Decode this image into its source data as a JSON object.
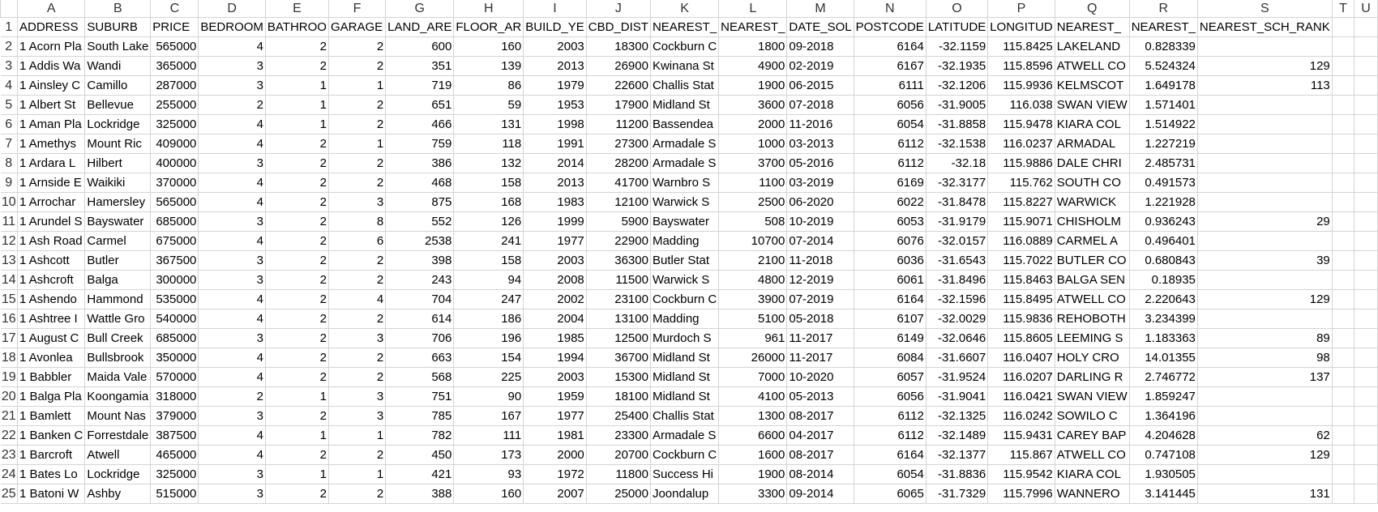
{
  "sheet": {
    "column_letters": [
      "A",
      "B",
      "C",
      "D",
      "E",
      "F",
      "G",
      "H",
      "I",
      "J",
      "K",
      "L",
      "M",
      "N",
      "O",
      "P",
      "Q",
      "R",
      "S",
      "T",
      "U"
    ],
    "rows": [
      {
        "num": "1",
        "cells": [
          "ADDRESS",
          "SUBURB",
          "PRICE",
          "BEDROOM",
          "BATHROO",
          "GARAGE",
          "LAND_ARE",
          "FLOOR_AR",
          "BUILD_YE",
          "CBD_DIST",
          "NEAREST_",
          "NEAREST_",
          "DATE_SOL",
          "POSTCODE",
          "LATITUDE",
          "LONGITUD",
          "NEAREST_",
          "NEAREST_",
          "NEAREST_SCH_RANK",
          "",
          ""
        ]
      },
      {
        "num": "2",
        "cells": [
          "1 Acorn Pla",
          "South Lake",
          "565000",
          "4",
          "2",
          "2",
          "600",
          "160",
          "2003",
          "18300",
          "Cockburn C",
          "1800",
          "09-2018",
          "6164",
          "-32.1159",
          "115.8425",
          "LAKELAND",
          "0.828339",
          "",
          "",
          ""
        ]
      },
      {
        "num": "3",
        "cells": [
          "1 Addis Wa",
          "Wandi",
          "365000",
          "3",
          "2",
          "2",
          "351",
          "139",
          "2013",
          "26900",
          "Kwinana St",
          "4900",
          "02-2019",
          "6167",
          "-32.1935",
          "115.8596",
          "ATWELL CO",
          "5.524324",
          "129",
          "",
          ""
        ]
      },
      {
        "num": "4",
        "cells": [
          "1 Ainsley C",
          "Camillo",
          "287000",
          "3",
          "1",
          "1",
          "719",
          "86",
          "1979",
          "22600",
          "Challis Stat",
          "1900",
          "06-2015",
          "6111",
          "-32.1206",
          "115.9936",
          "KELMSCOT",
          "1.649178",
          "113",
          "",
          ""
        ]
      },
      {
        "num": "5",
        "cells": [
          "1 Albert St",
          "Bellevue",
          "255000",
          "2",
          "1",
          "2",
          "651",
          "59",
          "1953",
          "17900",
          "Midland St",
          "3600",
          "07-2018",
          "6056",
          "-31.9005",
          "116.038",
          "SWAN VIEW",
          "1.571401",
          "",
          "",
          ""
        ]
      },
      {
        "num": "6",
        "cells": [
          "1 Aman Pla",
          "Lockridge",
          "325000",
          "4",
          "1",
          "2",
          "466",
          "131",
          "1998",
          "11200",
          "Bassendea",
          "2000",
          "11-2016",
          "6054",
          "-31.8858",
          "115.9478",
          "KIARA COL",
          "1.514922",
          "",
          "",
          ""
        ]
      },
      {
        "num": "7",
        "cells": [
          "1 Amethys",
          "Mount Ric",
          "409000",
          "4",
          "2",
          "1",
          "759",
          "118",
          "1991",
          "27300",
          "Armadale S",
          "1000",
          "03-2013",
          "6112",
          "-32.1538",
          "116.0237",
          "ARMADAL",
          "1.227219",
          "",
          "",
          ""
        ]
      },
      {
        "num": "8",
        "cells": [
          "1 Ardara L",
          "Hilbert",
          "400000",
          "3",
          "2",
          "2",
          "386",
          "132",
          "2014",
          "28200",
          "Armadale S",
          "3700",
          "05-2016",
          "6112",
          "-32.18",
          "115.9886",
          "DALE CHRI",
          "2.485731",
          "",
          "",
          ""
        ]
      },
      {
        "num": "9",
        "cells": [
          "1 Arnside E",
          "Waikiki",
          "370000",
          "4",
          "2",
          "2",
          "468",
          "158",
          "2013",
          "41700",
          "Warnbro S",
          "1100",
          "03-2019",
          "6169",
          "-32.3177",
          "115.762",
          "SOUTH CO",
          "0.491573",
          "",
          "",
          ""
        ]
      },
      {
        "num": "10",
        "cells": [
          "1 Arrochar",
          "Hamersley",
          "565000",
          "4",
          "2",
          "3",
          "875",
          "168",
          "1983",
          "12100",
          "Warwick S",
          "2500",
          "06-2020",
          "6022",
          "-31.8478",
          "115.8227",
          "WARWICK",
          "1.221928",
          "",
          "",
          ""
        ]
      },
      {
        "num": "11",
        "cells": [
          "1 Arundel S",
          "Bayswater",
          "685000",
          "3",
          "2",
          "8",
          "552",
          "126",
          "1999",
          "5900",
          "Bayswater",
          "508",
          "10-2019",
          "6053",
          "-31.9179",
          "115.9071",
          "CHISHOLM",
          "0.936243",
          "29",
          "",
          ""
        ]
      },
      {
        "num": "12",
        "cells": [
          "1 Ash Road",
          "Carmel",
          "675000",
          "4",
          "2",
          "6",
          "2538",
          "241",
          "1977",
          "22900",
          "Madding",
          "10700",
          "07-2014",
          "6076",
          "-32.0157",
          "116.0889",
          "CARMEL A",
          "0.496401",
          "",
          "",
          ""
        ]
      },
      {
        "num": "13",
        "cells": [
          "1 Ashcott",
          "Butler",
          "367500",
          "3",
          "2",
          "2",
          "398",
          "158",
          "2003",
          "36300",
          "Butler Stat",
          "2100",
          "11-2018",
          "6036",
          "-31.6543",
          "115.7022",
          "BUTLER CO",
          "0.680843",
          "39",
          "",
          ""
        ]
      },
      {
        "num": "14",
        "cells": [
          "1 Ashcroft",
          "Balga",
          "300000",
          "3",
          "2",
          "2",
          "243",
          "94",
          "2008",
          "11500",
          "Warwick S",
          "4800",
          "12-2019",
          "6061",
          "-31.8496",
          "115.8463",
          "BALGA SEN",
          "0.18935",
          "",
          "",
          ""
        ]
      },
      {
        "num": "15",
        "cells": [
          "1 Ashendo",
          "Hammond",
          "535000",
          "4",
          "2",
          "4",
          "704",
          "247",
          "2002",
          "23100",
          "Cockburn C",
          "3900",
          "07-2019",
          "6164",
          "-32.1596",
          "115.8495",
          "ATWELL CO",
          "2.220643",
          "129",
          "",
          ""
        ]
      },
      {
        "num": "16",
        "cells": [
          "1 Ashtree I",
          "Wattle Gro",
          "540000",
          "4",
          "2",
          "2",
          "614",
          "186",
          "2004",
          "13100",
          "Madding",
          "5100",
          "05-2018",
          "6107",
          "-32.0029",
          "115.9836",
          "REHOBOTH",
          "3.234399",
          "",
          "",
          ""
        ]
      },
      {
        "num": "17",
        "cells": [
          "1 August C",
          "Bull Creek",
          "685000",
          "3",
          "2",
          "3",
          "706",
          "196",
          "1985",
          "12500",
          "Murdoch S",
          "961",
          "11-2017",
          "6149",
          "-32.0646",
          "115.8605",
          "LEEMING S",
          "1.183363",
          "89",
          "",
          ""
        ]
      },
      {
        "num": "18",
        "cells": [
          "1 Avonlea",
          "Bullsbrook",
          "350000",
          "4",
          "2",
          "2",
          "663",
          "154",
          "1994",
          "36700",
          "Midland St",
          "26000",
          "11-2017",
          "6084",
          "-31.6607",
          "116.0407",
          "HOLY CRO",
          "14.01355",
          "98",
          "",
          ""
        ]
      },
      {
        "num": "19",
        "cells": [
          "1 Babbler",
          "Maida Vale",
          "570000",
          "4",
          "2",
          "2",
          "568",
          "225",
          "2003",
          "15300",
          "Midland St",
          "7000",
          "10-2020",
          "6057",
          "-31.9524",
          "116.0207",
          "DARLING R",
          "2.746772",
          "137",
          "",
          ""
        ]
      },
      {
        "num": "20",
        "cells": [
          "1 Balga Pla",
          "Koongamia",
          "318000",
          "2",
          "1",
          "3",
          "751",
          "90",
          "1959",
          "18100",
          "Midland St",
          "4100",
          "05-2013",
          "6056",
          "-31.9041",
          "116.0421",
          "SWAN VIEW",
          "1.859247",
          "",
          "",
          ""
        ]
      },
      {
        "num": "21",
        "cells": [
          "1 Bamlett",
          "Mount Nas",
          "379000",
          "3",
          "2",
          "3",
          "785",
          "167",
          "1977",
          "25400",
          "Challis Stat",
          "1300",
          "08-2017",
          "6112",
          "-32.1325",
          "116.0242",
          "SOWILO C",
          "1.364196",
          "",
          "",
          ""
        ]
      },
      {
        "num": "22",
        "cells": [
          "1 Banken C",
          "Forrestdale",
          "387500",
          "4",
          "1",
          "1",
          "782",
          "111",
          "1981",
          "23300",
          "Armadale S",
          "6600",
          "04-2017",
          "6112",
          "-32.1489",
          "115.9431",
          "CAREY BAP",
          "4.204628",
          "62",
          "",
          ""
        ]
      },
      {
        "num": "23",
        "cells": [
          "1 Barcroft",
          "Atwell",
          "465000",
          "4",
          "2",
          "2",
          "450",
          "173",
          "2000",
          "20700",
          "Cockburn C",
          "1600",
          "08-2017",
          "6164",
          "-32.1377",
          "115.867",
          "ATWELL CO",
          "0.747108",
          "129",
          "",
          ""
        ]
      },
      {
        "num": "24",
        "cells": [
          "1 Bates Lo",
          "Lockridge",
          "325000",
          "3",
          "1",
          "1",
          "421",
          "93",
          "1972",
          "11800",
          "Success Hi",
          "1900",
          "08-2014",
          "6054",
          "-31.8836",
          "115.9542",
          "KIARA COL",
          "1.930505",
          "",
          "",
          ""
        ]
      },
      {
        "num": "25",
        "cells": [
          "1 Batoni W",
          "Ashby",
          "515000",
          "3",
          "2",
          "2",
          "388",
          "160",
          "2007",
          "25000",
          "Joondalup",
          "3300",
          "09-2014",
          "6065",
          "-31.7329",
          "115.7996",
          "WANNERO",
          "3.141445",
          "131",
          "",
          ""
        ]
      }
    ]
  }
}
